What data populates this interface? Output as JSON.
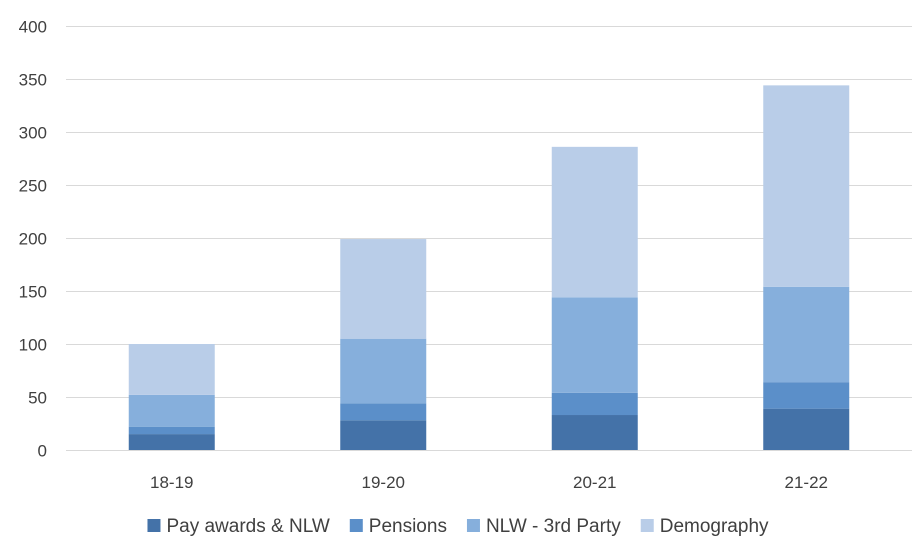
{
  "chart_data": {
    "type": "bar",
    "stacked": true,
    "categories": [
      "18-19",
      "19-20",
      "20-21",
      "21-22"
    ],
    "series": [
      {
        "name": "Pay awards & NLW",
        "color": "#4472a8",
        "values": [
          15,
          28,
          33,
          39
        ]
      },
      {
        "name": "Pensions",
        "color": "#5b8fc9",
        "values": [
          7,
          16,
          21,
          25
        ]
      },
      {
        "name": "NLW - 3rd Party",
        "color": "#86afdc",
        "values": [
          30,
          61,
          90,
          90
        ]
      },
      {
        "name": "Demography",
        "color": "#b9cde8",
        "values": [
          48,
          94,
          142,
          190
        ]
      }
    ],
    "ylim": [
      0,
      400
    ],
    "yticks": [
      0,
      50,
      100,
      150,
      200,
      250,
      300,
      350,
      400
    ],
    "grid": true,
    "legend_position": "bottom"
  }
}
